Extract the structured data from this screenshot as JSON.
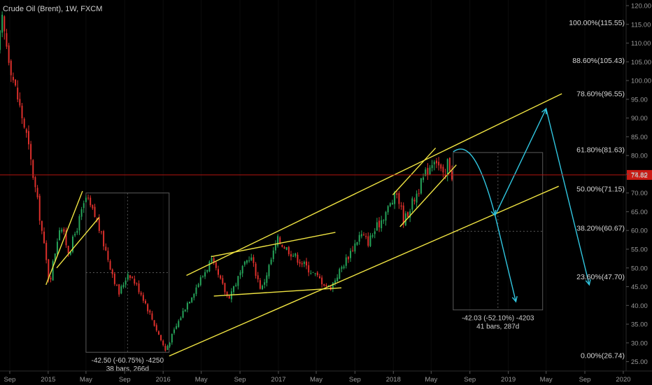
{
  "header": {
    "title": "Crude Oil (Brent), 1W, FXCM"
  },
  "colors": {
    "background": "#000000",
    "candle_up": "#26a65b",
    "candle_down": "#e0302c",
    "trendline": "#f0e442",
    "projection": "#31c6e0",
    "current_price_line": "#b3140f",
    "price_box": "#c91a14"
  },
  "current_price": {
    "label": "74.82",
    "value": 74.82
  },
  "chart_data": {
    "type": "candlestick",
    "title": "Crude Oil (Brent), 1W, FXCM",
    "timeframe": "1W",
    "x_range": [
      "2014-08-01",
      "2020-01-10"
    ],
    "ylim": [
      22.5,
      121.5
    ],
    "y_ticks": [
      "25.00",
      "30.00",
      "35.00",
      "40.00",
      "45.00",
      "50.00",
      "55.00",
      "60.00",
      "65.00",
      "70.00",
      "75.00",
      "80.00",
      "85.00",
      "90.00",
      "95.00",
      "100.00",
      "105.00",
      "110.00",
      "115.00",
      "120.00"
    ],
    "x_ticks": [
      {
        "label": "Sep",
        "date": "2014-09-01"
      },
      {
        "label": "2015",
        "date": "2015-01-01"
      },
      {
        "label": "May",
        "date": "2015-05-01"
      },
      {
        "label": "Sep",
        "date": "2015-09-01"
      },
      {
        "label": "2016",
        "date": "2016-01-01"
      },
      {
        "label": "May",
        "date": "2016-05-01"
      },
      {
        "label": "Sep",
        "date": "2016-09-01"
      },
      {
        "label": "2017",
        "date": "2017-01-01"
      },
      {
        "label": "May",
        "date": "2017-05-01"
      },
      {
        "label": "Sep",
        "date": "2017-09-01"
      },
      {
        "label": "2018",
        "date": "2018-01-01"
      },
      {
        "label": "May",
        "date": "2018-05-01"
      },
      {
        "label": "Sep",
        "date": "2018-09-01"
      },
      {
        "label": "2019",
        "date": "2019-01-01"
      },
      {
        "label": "May",
        "date": "2019-05-01"
      },
      {
        "label": "Sep",
        "date": "2019-09-01"
      },
      {
        "label": "2020",
        "date": "2020-01-01"
      }
    ],
    "price_path": [
      [
        "2014-08-01",
        107.5
      ],
      [
        "2014-08-15",
        115.6
      ],
      [
        "2014-09-20",
        100.0
      ],
      [
        "2014-11-01",
        85.0
      ],
      [
        "2014-12-10",
        65.0
      ],
      [
        "2015-01-12",
        46.0
      ],
      [
        "2015-02-15",
        62.0
      ],
      [
        "2015-03-15",
        54.0
      ],
      [
        "2015-05-08",
        68.5
      ],
      [
        "2015-06-10",
        63.0
      ],
      [
        "2015-08-20",
        43.0
      ],
      [
        "2015-09-20",
        49.0
      ],
      [
        "2015-11-01",
        43.0
      ],
      [
        "2016-01-15",
        28.0
      ],
      [
        "2016-03-20",
        40.0
      ],
      [
        "2016-06-08",
        52.0
      ],
      [
        "2016-08-01",
        42.0
      ],
      [
        "2016-10-10",
        53.5
      ],
      [
        "2016-11-15",
        44.0
      ],
      [
        "2017-01-05",
        57.5
      ],
      [
        "2017-06-20",
        44.5
      ],
      [
        "2017-09-25",
        59.0
      ],
      [
        "2017-10-20",
        57.0
      ],
      [
        "2018-01-20",
        70.0
      ],
      [
        "2018-02-10",
        62.5
      ],
      [
        "2018-04-20",
        75.0
      ],
      [
        "2018-05-20",
        80.0
      ],
      [
        "2018-06-20",
        73.0
      ],
      [
        "2018-07-01",
        79.5
      ],
      [
        "2018-07-10",
        74.82
      ]
    ],
    "fib_levels": [
      {
        "label": "100.00%(115.55)",
        "value": 115.55
      },
      {
        "label": "88.60%(105.43)",
        "value": 105.43
      },
      {
        "label": "78.60%(96.55)",
        "value": 96.55
      },
      {
        "label": "61.80%(81.63)",
        "value": 81.63
      },
      {
        "label": "50.00%(71.15)",
        "value": 71.15
      },
      {
        "label": "38.20%(60.67)",
        "value": 60.67
      },
      {
        "label": "23.60%(47.70)",
        "value": 47.7
      },
      {
        "label": "0.00%(26.74)",
        "value": 26.74
      }
    ],
    "trend_lines": [
      {
        "from": [
          "2014-12-25",
          45.5
        ],
        "to": [
          "2015-04-20",
          70.5
        ]
      },
      {
        "from": [
          "2015-01-28",
          50.0
        ],
        "to": [
          "2015-06-12",
          63.5
        ]
      },
      {
        "from": [
          "2016-01-20",
          26.5
        ],
        "to": [
          "2019-06-10",
          71.8
        ]
      },
      {
        "from": [
          "2016-03-15",
          48.0
        ],
        "to": [
          "2019-06-20",
          96.5
        ]
      },
      {
        "from": [
          "2016-06-01",
          53.0
        ],
        "to": [
          "2017-07-01",
          59.5
        ]
      },
      {
        "from": [
          "2016-06-10",
          42.5
        ],
        "to": [
          "2017-07-20",
          44.7
        ]
      },
      {
        "from": [
          "2017-12-30",
          69.5
        ],
        "to": [
          "2018-05-15",
          82.0
        ]
      },
      {
        "from": [
          "2018-01-22",
          61.0
        ],
        "to": [
          "2018-07-20",
          77.5
        ]
      }
    ],
    "projection_path": [
      [
        "2018-07-10",
        81.0
      ],
      [
        "2018-08-20",
        80.5
      ],
      [
        "2018-10-01",
        76.0
      ],
      [
        "2018-11-20",
        64.0
      ],
      [
        "2019-05-01",
        92.5
      ],
      [
        "2019-09-15",
        45.5
      ]
    ],
    "projection_branch": [
      [
        "2018-11-20",
        64.0
      ],
      [
        "2019-01-25",
        41.0
      ]
    ],
    "measurements": [
      {
        "line1": "-42.50 (-60.75%) -4250",
        "line2": "38 bars, 266d",
        "from": [
          "2015-05-01",
          70.0
        ],
        "to": [
          "2016-01-20",
          27.5
        ]
      },
      {
        "line1": "-42.03 (-52.10%) -4203",
        "line2": "41 bars, 287d",
        "from": [
          "2018-07-10",
          80.8
        ],
        "to": [
          "2019-04-20",
          38.8
        ]
      }
    ]
  }
}
